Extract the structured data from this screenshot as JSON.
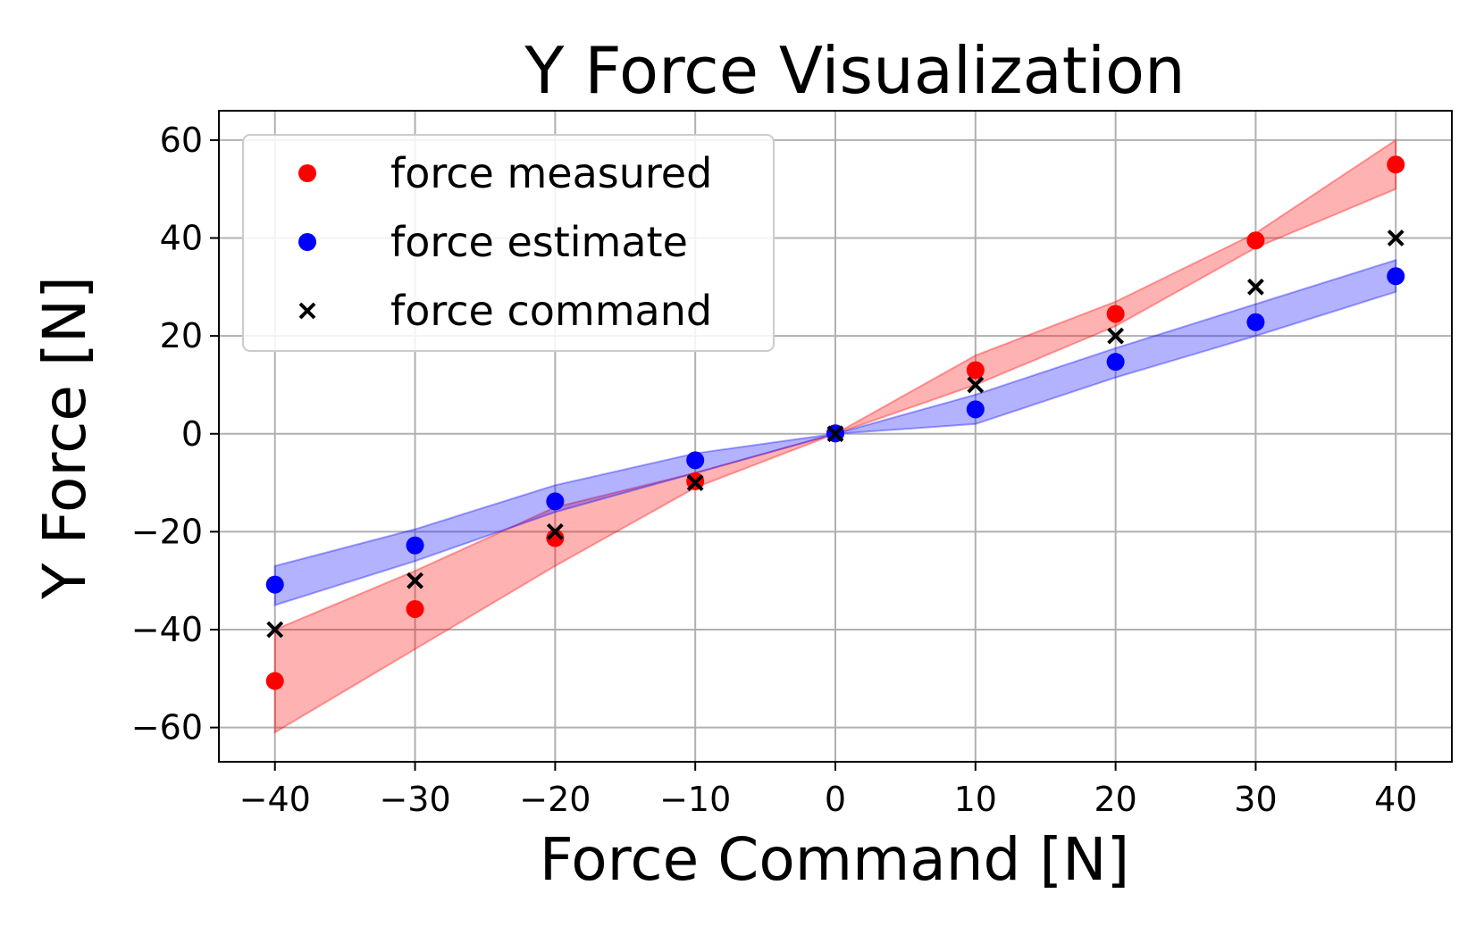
{
  "chart_data": {
    "type": "scatter",
    "title": "Y Force Visualization",
    "xlabel": "Force Command [N]",
    "ylabel": "Y Force [N]",
    "xlim": [
      -44,
      44
    ],
    "ylim": [
      -67,
      66
    ],
    "xticks": [
      -40,
      -30,
      -20,
      -10,
      0,
      10,
      20,
      30,
      40
    ],
    "yticks": [
      -60,
      -40,
      -20,
      0,
      20,
      40,
      60
    ],
    "xtick_labels": [
      "−40",
      "−30",
      "−20",
      "−10",
      "0",
      "10",
      "20",
      "30",
      "40"
    ],
    "ytick_labels": [
      "−60",
      "−40",
      "−20",
      "0",
      "20",
      "40",
      "60"
    ],
    "grid": true,
    "legend_position": "top-left",
    "x": [
      -40,
      -30,
      -20,
      -10,
      0,
      10,
      20,
      30,
      40
    ],
    "series": [
      {
        "name": "force measured",
        "marker": "circle",
        "color": "#ff0000",
        "values": [
          -50.5,
          -35.8,
          -21.3,
          -9.7,
          0.1,
          13.0,
          24.5,
          39.5,
          55.0
        ],
        "band_color": "#ff0000",
        "band_upper": [
          -40,
          -28,
          -15,
          -8,
          0,
          16,
          27,
          41,
          60
        ],
        "band_lower": [
          -61,
          -44,
          -27,
          -11,
          0,
          10,
          22,
          38,
          50
        ]
      },
      {
        "name": "force estimate",
        "marker": "circle",
        "color": "#0000ff",
        "values": [
          -30.8,
          -22.8,
          -13.8,
          -5.4,
          0.1,
          5.0,
          14.7,
          22.8,
          32.2
        ],
        "band_color": "#0000ff",
        "band_upper": [
          -27,
          -19.5,
          -10.5,
          -4,
          0,
          8,
          17.5,
          26.5,
          35.5
        ],
        "band_lower": [
          -35,
          -26,
          -16,
          -8,
          0,
          2,
          11.5,
          20,
          29
        ]
      },
      {
        "name": "force command",
        "marker": "x",
        "color": "#000000",
        "values": [
          -40,
          -30,
          -20,
          -10,
          0,
          10,
          20,
          30,
          40
        ]
      }
    ]
  }
}
